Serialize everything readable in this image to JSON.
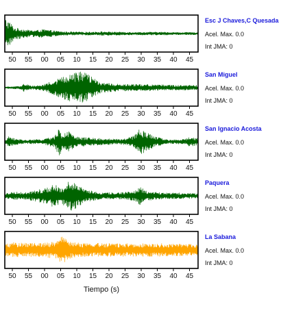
{
  "chart_data": {
    "type": "line",
    "xlabel": "Tiempo (s)",
    "tick_labels": [
      "50",
      "55",
      "00",
      "05",
      "10",
      "15",
      "20",
      "25",
      "30",
      "35",
      "40",
      "45"
    ],
    "acel_label": "Acel. Max.",
    "int_label": "Int JMA:",
    "panels": [
      {
        "station": "Esc J Chaves,C Quesada",
        "acel_max": "0.0",
        "int_jma": "0",
        "color": "#006400",
        "envelope": [
          [
            0,
            0.95
          ],
          [
            0.012,
            0.8
          ],
          [
            0.03,
            0.65
          ],
          [
            0.05,
            0.35
          ],
          [
            0.08,
            0.3
          ],
          [
            0.12,
            0.22
          ],
          [
            0.16,
            0.2
          ],
          [
            0.2,
            0.25
          ],
          [
            0.25,
            0.18
          ],
          [
            0.3,
            0.12
          ],
          [
            0.4,
            0.1
          ],
          [
            0.5,
            0.12
          ],
          [
            0.6,
            0.1
          ],
          [
            0.7,
            0.09
          ],
          [
            0.8,
            0.1
          ],
          [
            0.9,
            0.08
          ],
          [
            1,
            0.08
          ]
        ]
      },
      {
        "station": "San Miguel",
        "acel_max": "0.0",
        "int_jma": "0",
        "color": "#006400",
        "envelope": [
          [
            0,
            0.05
          ],
          [
            0.08,
            0.1
          ],
          [
            0.1,
            0.25
          ],
          [
            0.14,
            0.1
          ],
          [
            0.2,
            0.2
          ],
          [
            0.25,
            0.4
          ],
          [
            0.3,
            0.65
          ],
          [
            0.35,
            0.85
          ],
          [
            0.38,
            0.95
          ],
          [
            0.42,
            0.85
          ],
          [
            0.46,
            0.55
          ],
          [
            0.5,
            0.3
          ],
          [
            0.6,
            0.2
          ],
          [
            0.7,
            0.2
          ],
          [
            0.8,
            0.18
          ],
          [
            0.9,
            0.15
          ],
          [
            1,
            0.15
          ]
        ]
      },
      {
        "station": "San Ignacio Acosta",
        "acel_max": "0.0",
        "int_jma": "0",
        "color": "#006400",
        "envelope": [
          [
            0,
            0.1
          ],
          [
            0.02,
            0.3
          ],
          [
            0.05,
            0.2
          ],
          [
            0.1,
            0.12
          ],
          [
            0.2,
            0.15
          ],
          [
            0.26,
            0.35
          ],
          [
            0.28,
            0.9
          ],
          [
            0.3,
            0.4
          ],
          [
            0.33,
            0.65
          ],
          [
            0.36,
            0.3
          ],
          [
            0.5,
            0.2
          ],
          [
            0.6,
            0.15
          ],
          [
            0.67,
            0.35
          ],
          [
            0.7,
            0.8
          ],
          [
            0.73,
            0.55
          ],
          [
            0.78,
            0.3
          ],
          [
            0.85,
            0.12
          ],
          [
            0.93,
            0.15
          ],
          [
            0.96,
            0.3
          ],
          [
            1,
            0.2
          ]
        ]
      },
      {
        "station": "Paquera",
        "acel_max": "0.0",
        "int_jma": "0",
        "color": "#006400",
        "envelope": [
          [
            0,
            0.15
          ],
          [
            0.05,
            0.25
          ],
          [
            0.1,
            0.2
          ],
          [
            0.15,
            0.3
          ],
          [
            0.2,
            0.45
          ],
          [
            0.25,
            0.65
          ],
          [
            0.3,
            0.55
          ],
          [
            0.34,
            0.95
          ],
          [
            0.37,
            0.7
          ],
          [
            0.42,
            0.35
          ],
          [
            0.5,
            0.2
          ],
          [
            0.6,
            0.2
          ],
          [
            0.67,
            0.3
          ],
          [
            0.7,
            0.55
          ],
          [
            0.73,
            0.3
          ],
          [
            0.8,
            0.2
          ],
          [
            0.9,
            0.18
          ],
          [
            1,
            0.15
          ]
        ]
      },
      {
        "station": "La Sabana",
        "acel_max": "0.0",
        "int_jma": "0",
        "color": "#FFA500",
        "envelope": [
          [
            0,
            0.35
          ],
          [
            0.05,
            0.45
          ],
          [
            0.1,
            0.4
          ],
          [
            0.15,
            0.4
          ],
          [
            0.2,
            0.45
          ],
          [
            0.27,
            0.5
          ],
          [
            0.3,
            0.95
          ],
          [
            0.32,
            0.55
          ],
          [
            0.4,
            0.4
          ],
          [
            0.5,
            0.4
          ],
          [
            0.6,
            0.38
          ],
          [
            0.7,
            0.4
          ],
          [
            0.8,
            0.38
          ],
          [
            0.9,
            0.36
          ],
          [
            1,
            0.35
          ]
        ]
      }
    ]
  }
}
